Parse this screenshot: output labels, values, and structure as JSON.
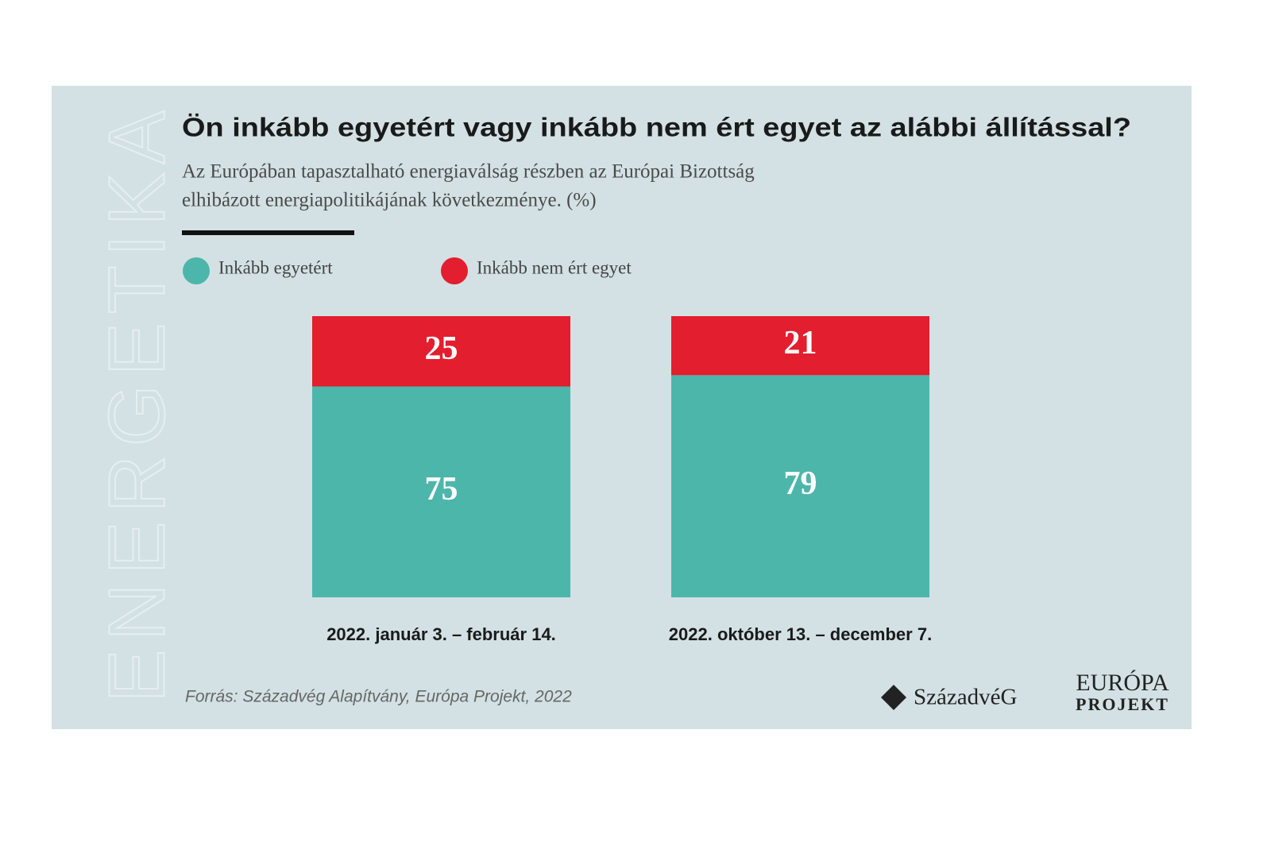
{
  "chart_data": {
    "type": "stacked_bar",
    "side_label": "ENERGETIKA",
    "title": "Ön inkább egyetért vagy inkább nem ért egyet az alábbi állítással?",
    "subtitle": [
      "Az Európában tapasztalható energiaválság részben az Európai Bizottság",
      "elhibázott energiapolitikájának következménye. (%)"
    ],
    "categories": [
      "2022. január 3. – február 14.",
      "2022. október 13. – december 7."
    ],
    "series": [
      {
        "name": "Inkább egyetért",
        "color": "#4db6ab",
        "values": [
          75,
          79
        ]
      },
      {
        "name": "Inkább nem ért egyet",
        "color": "#e31e2e",
        "values": [
          25,
          21
        ]
      }
    ],
    "source": "Forrás: Századvég Alapítvány, Európa Projekt, 2022",
    "logos": [
      "SzázadvéG",
      "EURÓPA",
      "PROJEKT"
    ]
  }
}
